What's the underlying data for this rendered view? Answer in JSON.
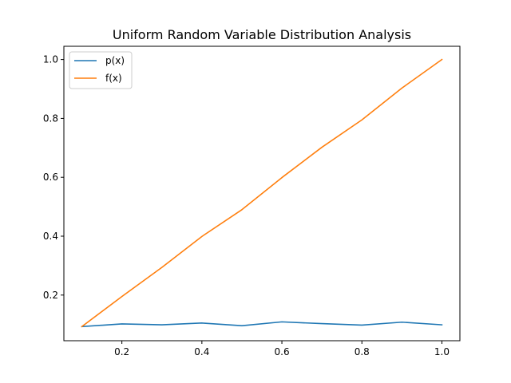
{
  "chart_data": {
    "type": "line",
    "title": "Uniform Random Variable Distribution Analysis",
    "xlabel": "",
    "ylabel": "",
    "x": [
      0.1,
      0.2,
      0.3,
      0.4,
      0.5,
      0.6,
      0.7,
      0.8,
      0.9,
      1.0
    ],
    "xlim": [
      0.055,
      1.045
    ],
    "ylim": [
      0.045,
      1.045
    ],
    "xticks": [
      0.2,
      0.4,
      0.6,
      0.8,
      1.0
    ],
    "xtick_labels": [
      "0.2",
      "0.4",
      "0.6",
      "0.8",
      "1.0"
    ],
    "yticks": [
      0.2,
      0.4,
      0.6,
      0.8,
      1.0
    ],
    "ytick_labels": [
      "0.2",
      "0.4",
      "0.6",
      "0.8",
      "1.0"
    ],
    "grid": false,
    "legend_position": "top-left",
    "series": [
      {
        "name": "p(x)",
        "color": "#1f77b4",
        "values": [
          0.093,
          0.102,
          0.099,
          0.105,
          0.096,
          0.109,
          0.103,
          0.098,
          0.108,
          0.099
        ]
      },
      {
        "name": "f(x)",
        "color": "#ff7f0e",
        "values": [
          0.093,
          0.195,
          0.294,
          0.399,
          0.49,
          0.599,
          0.702,
          0.795,
          0.903,
          1.0
        ]
      }
    ]
  }
}
